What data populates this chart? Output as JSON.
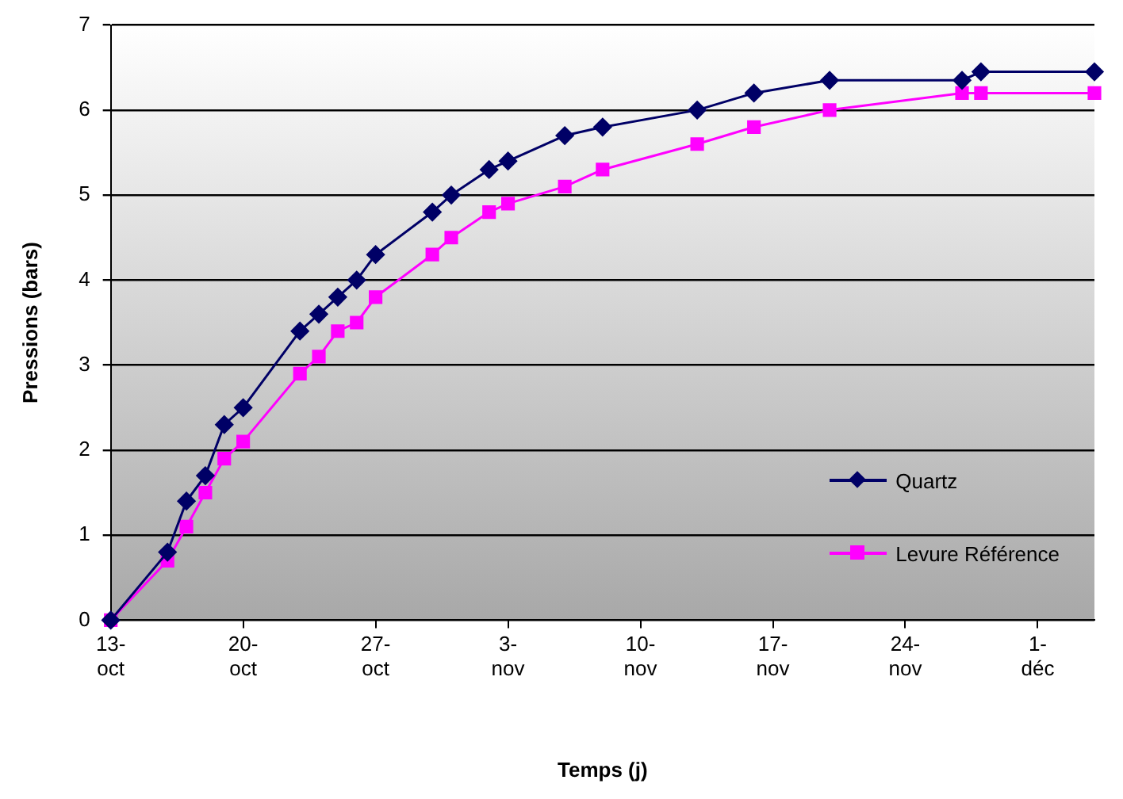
{
  "chart_data": {
    "type": "line",
    "xlabel": "Temps (j)",
    "ylabel": "Pressions (bars)",
    "xlim": [
      "--10-13",
      "--12-04"
    ],
    "xticks": [
      {
        "value": "--10-13",
        "label": "13-oct"
      },
      {
        "value": "--10-20",
        "label": "20-oct"
      },
      {
        "value": "--10-27",
        "label": "27-oct"
      },
      {
        "value": "--11-03",
        "label": "3-nov"
      },
      {
        "value": "--11-10",
        "label": "10-nov"
      },
      {
        "value": "--11-17",
        "label": "17-nov"
      },
      {
        "value": "--11-24",
        "label": "24-nov"
      },
      {
        "value": "--12-01",
        "label": "1-déc"
      }
    ],
    "ylim": [
      0,
      7
    ],
    "yticks": [
      0,
      1,
      2,
      3,
      4,
      5,
      6,
      7
    ],
    "grid": "y",
    "legend": "bottom right",
    "line_style": "solid",
    "x": [
      "--10-13",
      "--10-16",
      "--10-17",
      "--10-18",
      "--10-19",
      "--10-20",
      "--10-23",
      "--10-24",
      "--10-25",
      "--10-26",
      "--10-27",
      "--10-30",
      "--10-31",
      "--11-02",
      "--11-03",
      "--11-06",
      "--11-08",
      "--11-13",
      "--11-16",
      "--11-20",
      "--11-27",
      "--11-28",
      "--12-04"
    ],
    "series": [
      {
        "name": "Quartz",
        "color": "#000066",
        "marker": "diamond",
        "values": [
          0,
          0.8,
          1.4,
          1.7,
          2.3,
          2.5,
          3.4,
          3.6,
          3.8,
          4.0,
          4.3,
          4.8,
          5.0,
          5.3,
          5.4,
          5.7,
          5.8,
          6.0,
          6.2,
          6.35,
          6.35,
          6.45,
          6.45
        ]
      },
      {
        "name": "Levure Référence",
        "color": "#ff00ff",
        "marker": "square",
        "values": [
          0,
          0.7,
          1.1,
          1.5,
          1.9,
          2.1,
          2.9,
          3.1,
          3.4,
          3.5,
          3.8,
          4.3,
          4.5,
          4.8,
          4.9,
          5.1,
          5.3,
          5.6,
          5.8,
          6.0,
          6.2,
          6.2,
          6.2
        ]
      }
    ]
  }
}
